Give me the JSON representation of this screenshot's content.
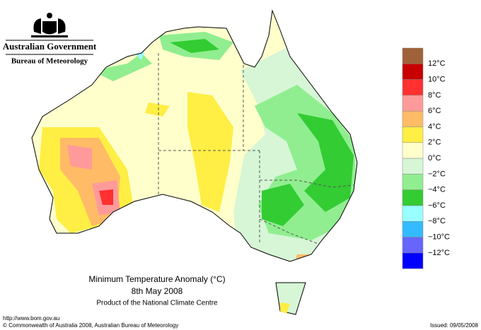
{
  "header": {
    "agency": "Australian Government",
    "bureau": "Bureau of Meteorology"
  },
  "legend": {
    "labels": [
      "12°C",
      "10°C",
      "8°C",
      "6°C",
      "4°C",
      "2°C",
      "0°C",
      "−2°C",
      "−4°C",
      "−6°C",
      "−8°C",
      "−10°C",
      "−12°C"
    ],
    "colors": [
      "#a0623a",
      "#c80000",
      "#ff3030",
      "#ff9a9a",
      "#ffbb66",
      "#ffee44",
      "#ffffcc",
      "#d6f6d6",
      "#90ee90",
      "#33cc33",
      "#99ffff",
      "#33bbff",
      "#6666ff",
      "#0000ff"
    ]
  },
  "footer": {
    "title": "Minimum Temperature Anomaly (°C)",
    "date": "8th May 2008",
    "product": "Product of the National Climate Centre",
    "url": "http://www.bom.gov.au",
    "copyright": "© Commonwealth of Australia 2008, Australian Bureau of Meteorology",
    "issued": "Issued: 09/05/2008"
  }
}
